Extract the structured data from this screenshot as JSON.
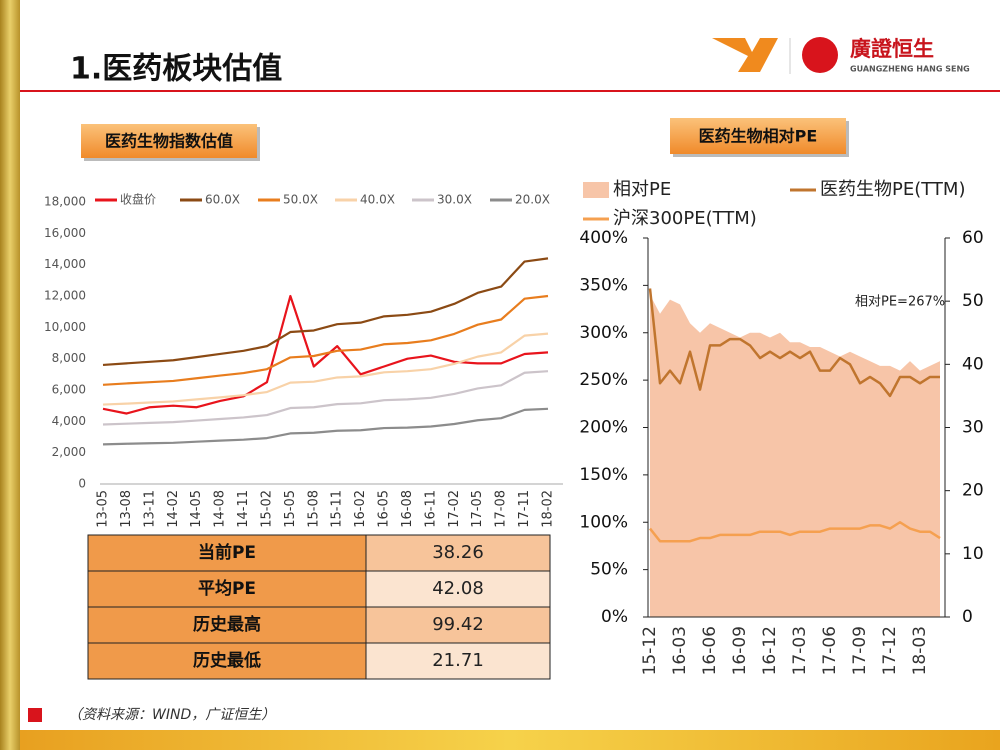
{
  "header": {
    "title": "1.医药板块估值",
    "logo_name": "廣證恒生",
    "logo_sub": "GUANGZHENG HANG SENG"
  },
  "chart_data": [
    {
      "type": "line",
      "title": "医药生物指数估值",
      "categories": [
        "13-05",
        "13-08",
        "13-11",
        "14-02",
        "14-05",
        "14-08",
        "14-11",
        "15-02",
        "15-05",
        "15-08",
        "15-11",
        "16-02",
        "16-05",
        "16-08",
        "16-11",
        "17-02",
        "17-05",
        "17-08",
        "17-11",
        "18-02"
      ],
      "series": [
        {
          "name": "收盘价",
          "color": "#e8141c",
          "values": [
            4800,
            4500,
            4900,
            5000,
            4900,
            5300,
            5600,
            6500,
            12000,
            7500,
            8800,
            7000,
            7500,
            8000,
            8200,
            7800,
            7700,
            7700,
            8300,
            8400
          ]
        },
        {
          "name": "60.0X",
          "color": "#8b4a14",
          "values": [
            7600,
            7700,
            7800,
            7900,
            8100,
            8300,
            8500,
            8800,
            9700,
            9800,
            10200,
            10300,
            10700,
            10800,
            11000,
            11500,
            12200,
            12600,
            14200,
            14400
          ]
        },
        {
          "name": "50.0X",
          "color": "#e87d1e",
          "values": [
            6330,
            6420,
            6500,
            6580,
            6750,
            6920,
            7080,
            7330,
            8080,
            8170,
            8500,
            8580,
            8920,
            9000,
            9170,
            9580,
            10170,
            10500,
            11830,
            12000
          ]
        },
        {
          "name": "40.0X",
          "color": "#f8d2a8",
          "values": [
            5070,
            5130,
            5200,
            5270,
            5400,
            5530,
            5670,
            5870,
            6470,
            6530,
            6800,
            6870,
            7130,
            7200,
            7330,
            7670,
            8130,
            8400,
            9470,
            9600
          ]
        },
        {
          "name": "30.0X",
          "color": "#ccc4ca",
          "values": [
            3800,
            3850,
            3900,
            3950,
            4050,
            4150,
            4250,
            4400,
            4850,
            4900,
            5100,
            5150,
            5350,
            5400,
            5500,
            5750,
            6100,
            6300,
            7100,
            7200
          ]
        },
        {
          "name": "20.0X",
          "color": "#8c8c8c",
          "values": [
            2530,
            2570,
            2600,
            2630,
            2700,
            2770,
            2830,
            2930,
            3230,
            3270,
            3400,
            3430,
            3570,
            3600,
            3670,
            3830,
            4070,
            4200,
            4730,
            4800
          ]
        }
      ],
      "ylim": [
        0,
        18000
      ],
      "yticks": [
        0,
        {
          "value": 2000,
          "label": "2,000"
        },
        {
          "value": 4000,
          "label": "4,000"
        },
        {
          "value": 6000,
          "label": "6,000"
        },
        {
          "value": 8000,
          "label": "8,000"
        },
        {
          "value": 10000,
          "label": "10,000"
        },
        {
          "value": 12000,
          "label": "12,000"
        },
        {
          "value": 14000,
          "label": "14,000"
        },
        {
          "value": 16000,
          "label": "16,000"
        },
        {
          "value": 18000,
          "label": "18,000"
        }
      ],
      "legend": "top",
      "grid": false
    },
    {
      "type": "line",
      "title": "医药生物相对PE",
      "categories": [
        "15-12",
        null,
        null,
        "16-03",
        null,
        null,
        "16-06",
        null,
        null,
        "16-09",
        null,
        null,
        "16-12",
        null,
        null,
        "17-03",
        null,
        null,
        "17-06",
        null,
        null,
        "17-09",
        null,
        null,
        "17-12",
        null,
        null,
        "18-03",
        null,
        null
      ],
      "series": [
        {
          "name": "相对PE",
          "type": "area",
          "color": "#f7c5a8",
          "values": [
            340,
            320,
            335,
            330,
            310,
            300,
            310,
            305,
            300,
            295,
            300,
            300,
            295,
            300,
            290,
            290,
            285,
            285,
            280,
            275,
            280,
            275,
            270,
            265,
            265,
            260,
            270,
            260,
            265,
            270
          ]
        },
        {
          "name": "医药生物PE(TTM)",
          "color": "#c0752e",
          "axis": "y2",
          "values": [
            52,
            37,
            39,
            37,
            42,
            36,
            43,
            43,
            44,
            44,
            43,
            41,
            42,
            41,
            42,
            41,
            42,
            39,
            39,
            41,
            40,
            37,
            38,
            37,
            35,
            38,
            38,
            37,
            38,
            38
          ]
        },
        {
          "name": "沪深300PE(TTM)",
          "color": "#f5a050",
          "axis": "y2",
          "values": [
            14,
            12,
            12,
            12,
            12,
            12.5,
            12.5,
            13,
            13,
            13,
            13,
            13.5,
            13.5,
            13.5,
            13,
            13.5,
            13.5,
            13.5,
            14,
            14,
            14,
            14,
            14.5,
            14.5,
            14,
            15,
            14,
            13.5,
            13.5,
            12.5
          ]
        }
      ],
      "annotation": "相对PE=267%",
      "ylim": [
        0,
        400
      ],
      "yticks": [
        {
          "value": 0,
          "label": "0%"
        },
        {
          "value": 50,
          "label": "50%"
        },
        {
          "value": 100,
          "label": "100%"
        },
        {
          "value": 150,
          "label": "150%"
        },
        {
          "value": 200,
          "label": "200%"
        },
        {
          "value": 250,
          "label": "250%"
        },
        {
          "value": 300,
          "label": "300%"
        },
        {
          "value": 350,
          "label": "350%"
        },
        {
          "value": 400,
          "label": "400%"
        }
      ],
      "y2lim": [
        0,
        60
      ],
      "y2ticks": [
        0,
        10,
        20,
        30,
        40,
        50,
        60
      ],
      "legend": "top",
      "grid": false
    }
  ],
  "table": {
    "rows": [
      [
        "当前PE",
        "38.26"
      ],
      [
        "平均PE",
        "42.08"
      ],
      [
        "历史最高",
        "99.42"
      ],
      [
        "历史最低",
        "21.71"
      ]
    ]
  },
  "footer": {
    "source": "（资料来源：WIND，广证恒生）"
  }
}
